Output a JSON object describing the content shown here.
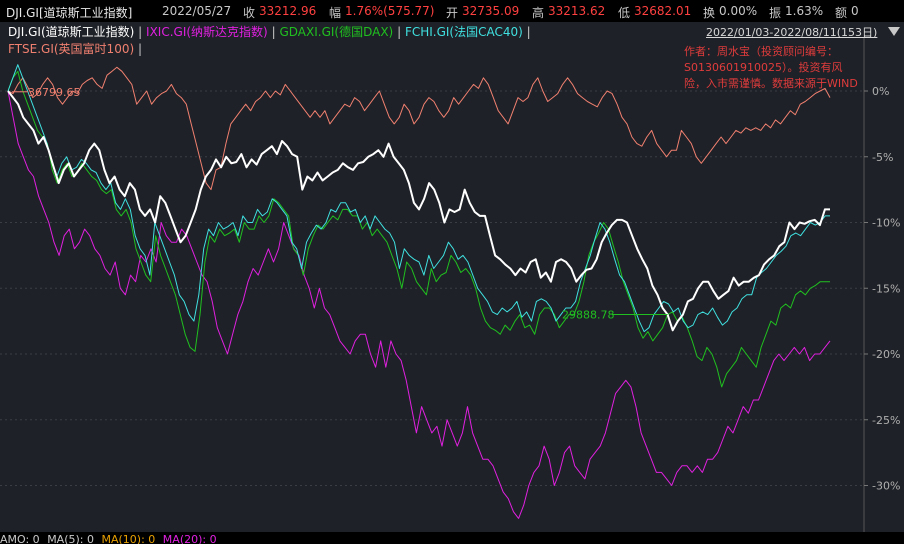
{
  "header": {
    "symbol": "DJI.GI[道琼斯工业指数]",
    "date": "2022/05/27",
    "close_label": "收",
    "close": "33212.96",
    "change_label": "幅",
    "change": "1.76%(575.77)",
    "open_label": "开",
    "open": "32735.09",
    "high_label": "高",
    "high": "33213.62",
    "low_label": "低",
    "low": "32682.01",
    "turnover_label": "换",
    "turnover": "0.00%",
    "amplitude_label": "振",
    "amplitude": "1.63%",
    "amount_label": "额",
    "amount": "0"
  },
  "legend": [
    {
      "label": "DJI.GI(道琼斯工业指数)",
      "color": "#ffffff"
    },
    {
      "label": "IXIC.GI(纳斯达克指数)",
      "color": "#e020e0"
    },
    {
      "label": "GDAXI.GI(德国DAX)",
      "color": "#20c020"
    },
    {
      "label": "FCHI.GI(法国CAC40)",
      "color": "#40e0e0"
    },
    {
      "label": "FTSE.GI(英国富时100)",
      "color": "#f08070"
    }
  ],
  "legend_separator": "|",
  "date_range": "2022/01/03-2022/08/11(153日)",
  "author_note": "作者：周水宝（投资顾问编号：S0130601910025）。投资有风险，入市需谨慎。数据来源于WIND",
  "bottom": {
    "amo": "AMO: 0",
    "ma5": "MA(5): 0",
    "ma10": "MA(10): 0",
    "ma20": "MA(20): 0"
  },
  "colors": {
    "dji": "#ffffff",
    "ixic": "#e020e0",
    "dax": "#20c020",
    "cac": "#40e0e0",
    "ftse": "#f08070",
    "up": "#ff4040",
    "down": "#30d030",
    "ma10": "#e8a000",
    "ma20": "#e020e0"
  },
  "chart_data": {
    "type": "line",
    "title": "",
    "xlabel": "",
    "ylabel": "",
    "x_range": [
      "2022/01/03",
      "2022/08/11"
    ],
    "ylim": [
      -33,
      3
    ],
    "y_ticks": [
      "0%",
      "-5%",
      "-10%",
      "-15%",
      "-20%",
      "-25%",
      "-30%"
    ],
    "y_tick_values": [
      0,
      -5,
      -10,
      -15,
      -20,
      -25,
      -30
    ],
    "annotations": [
      {
        "text": "36799.65",
        "x": 0,
        "y": 0.7,
        "color": "#f08070"
      },
      {
        "text": "29888.78",
        "x": 56,
        "y": -18.3,
        "color": "#20c020"
      }
    ],
    "series": [
      {
        "name": "DJI.GI(道琼斯工业指数)",
        "color": "#ffffff",
        "width": 2,
        "values": [
          0,
          -0.5,
          -1,
          -2,
          -2.5,
          -3,
          -4,
          -3.5,
          -4.5,
          -5.8,
          -7,
          -6,
          -5.5,
          -6.5,
          -6,
          -5.5,
          -4.5,
          -4,
          -4.5,
          -6,
          -7,
          -6.5,
          -7.5,
          -8,
          -7,
          -7.5,
          -9,
          -9.5,
          -9,
          -10,
          -8,
          -8.5,
          -9.5,
          -10.5,
          -11.5,
          -11,
          -10,
          -9,
          -7.5,
          -6.5,
          -6,
          -5.2,
          -5.8,
          -5,
          -5.5,
          -5.4,
          -4.8,
          -5.8,
          -5.2,
          -5.6,
          -4.8,
          -4.5,
          -4.2,
          -4.8,
          -3.8,
          -4.2,
          -4.8,
          -5,
          -7.5,
          -6.5,
          -6.8,
          -6.2,
          -6.8,
          -6.5,
          -6.2,
          -6,
          -5.5,
          -5.8,
          -6,
          -5.5,
          -5.4,
          -5,
          -4.8,
          -4.5,
          -5,
          -4,
          -5,
          -5.5,
          -6,
          -7,
          -8.5,
          -9,
          -8.2,
          -7,
          -7.5,
          -8.5,
          -10,
          -9,
          -9.2,
          -9,
          -7.5,
          -8.5,
          -9.2,
          -9.5,
          -9.5,
          -11,
          -12.5,
          -12.8,
          -13.2,
          -13.5,
          -14,
          -13.5,
          -13.8,
          -13,
          -12.8,
          -14.2,
          -13.8,
          -14.5,
          -13,
          -12.8,
          -13,
          -13.5,
          -14.5,
          -14,
          -13.6,
          -13.5,
          -12.8,
          -11.5,
          -10.8,
          -10.2,
          -9.8,
          -9.8,
          -10,
          -11,
          -12,
          -12.8,
          -13.5,
          -14.8,
          -15.5,
          -16.5,
          -17,
          -18.2,
          -17.5,
          -17,
          -16,
          -15.8,
          -15,
          -14.5,
          -14.5,
          -15.2,
          -15.8,
          -15.5,
          -15.2,
          -14.2,
          -14.8,
          -14.5,
          -14.5,
          -14.2,
          -14,
          -13.2,
          -12.8,
          -12.5,
          -11.8,
          -11.5,
          -10,
          -10.5,
          -10,
          -10.1,
          -9.9,
          -9.8,
          -10.2,
          -9,
          -9
        ]
      },
      {
        "name": "FCHI.GI(法国CAC40)",
        "color": "#40e0e0",
        "width": 1,
        "values": [
          0,
          1,
          2,
          1,
          0,
          -1,
          -2,
          -3,
          -4,
          -5.5,
          -6.5,
          -5.5,
          -5,
          -6,
          -5.8,
          -5.2,
          -5.5,
          -6,
          -6.2,
          -7,
          -7.5,
          -7,
          -8.5,
          -9,
          -8.2,
          -9,
          -11,
          -12,
          -12.5,
          -14,
          -10,
          -11,
          -12,
          -13,
          -14,
          -15.5,
          -16,
          -17,
          -17.5,
          -15.5,
          -12,
          -10.5,
          -11,
          -10,
          -10.5,
          -10.3,
          -10,
          -11,
          -9.5,
          -10,
          -10,
          -9,
          -9.5,
          -9.2,
          -8.2,
          -8.5,
          -9,
          -9.5,
          -11.5,
          -12,
          -13.5,
          -11.5,
          -10.8,
          -10.2,
          -10.5,
          -10,
          -9,
          -9.2,
          -8.5,
          -8.5,
          -9.2,
          -9,
          -10,
          -9.5,
          -10.5,
          -9.5,
          -10,
          -10.5,
          -10.8,
          -11.5,
          -13.5,
          -12,
          -12.5,
          -12.8,
          -13,
          -14,
          -12.5,
          -13.5,
          -13,
          -12.5,
          -11.5,
          -12,
          -12.8,
          -12.5,
          -13,
          -14,
          -15,
          -15.5,
          -16,
          -16.8,
          -17,
          -16.5,
          -16.8,
          -16.5,
          -16,
          -17.2,
          -16.8,
          -17.5,
          -16,
          -15.8,
          -16,
          -16.5,
          -17.5,
          -17,
          -16.5,
          -16.5,
          -16,
          -14.5,
          -13.5,
          -12.5,
          -11.2,
          -10,
          -10.5,
          -11.5,
          -12.8,
          -14,
          -14.5,
          -15.5,
          -16.5,
          -17.5,
          -18.3,
          -18,
          -17,
          -16.5,
          -16,
          -16.2,
          -16.8,
          -16.5,
          -17.5,
          -18,
          -17.8,
          -17,
          -16.8,
          -17,
          -16.5,
          -17.2,
          -17.8,
          -17.5,
          -16.8,
          -16.5,
          -15.8,
          -15.5,
          -15.5,
          -14.2,
          -13.8,
          -13.5,
          -13,
          -12.5,
          -12.2,
          -11.8,
          -11,
          -10.8,
          -11,
          -10.5,
          -10,
          -10.2,
          -10,
          -9.5,
          -9.5
        ]
      },
      {
        "name": "GDAXI.GI(德国DAX)",
        "color": "#20c020",
        "width": 1,
        "values": [
          0,
          1,
          1.5,
          0,
          -1,
          -2,
          -3,
          -3.5,
          -4,
          -6,
          -7,
          -6,
          -5.5,
          -6.5,
          -6.2,
          -5.5,
          -6,
          -6.5,
          -6.8,
          -7.5,
          -7.8,
          -7.5,
          -9,
          -9.5,
          -9,
          -10,
          -12,
          -13,
          -14,
          -14.5,
          -11,
          -12.5,
          -13.5,
          -14.5,
          -15.5,
          -17,
          -18.5,
          -19.5,
          -19.8,
          -17,
          -13,
          -11,
          -11.5,
          -10.5,
          -11,
          -10.8,
          -10.5,
          -11.5,
          -10,
          -10.5,
          -10.5,
          -9.5,
          -10,
          -9.5,
          -8.2,
          -8.5,
          -9,
          -9.5,
          -12,
          -12.5,
          -14,
          -12,
          -11,
          -10.2,
          -10.5,
          -10,
          -9.5,
          -9.8,
          -9,
          -9,
          -9.5,
          -9.5,
          -10.5,
          -10,
          -11,
          -10.5,
          -11,
          -11.5,
          -12.5,
          -13.5,
          -15,
          -13,
          -13.5,
          -14.5,
          -15,
          -15.5,
          -13.5,
          -14.5,
          -14,
          -13.8,
          -12.5,
          -13,
          -13.8,
          -13.5,
          -14,
          -15,
          -16.5,
          -17.5,
          -18,
          -18.2,
          -18.5,
          -17.8,
          -18.2,
          -17.5,
          -17,
          -18,
          -17.8,
          -18.5,
          -17,
          -16.5,
          -16.5,
          -17,
          -18,
          -17.5,
          -17,
          -17,
          -16,
          -14.5,
          -12.5,
          -11.5,
          -10.8,
          -10,
          -10.5,
          -11.8,
          -13,
          -14.5,
          -15.5,
          -16.5,
          -18,
          -18.8,
          -18.3,
          -19,
          -18.5,
          -18,
          -17,
          -16.8,
          -17.5,
          -17.2,
          -18,
          -19,
          -20.2,
          -20.5,
          -19.5,
          -20,
          -21,
          -22.5,
          -21.5,
          -21,
          -20.5,
          -19.5,
          -20,
          -20.5,
          -21,
          -19.5,
          -18.5,
          -17.5,
          -17.8,
          -16.5,
          -16.2,
          -16.5,
          -15.5,
          -15.2,
          -15.5,
          -15,
          -14.8,
          -14.5,
          -14.5,
          -14.5
        ]
      },
      {
        "name": "IXIC.GI(纳斯达克指数)",
        "color": "#e020e0",
        "width": 1,
        "values": [
          0,
          -2,
          -4,
          -5,
          -6,
          -6.5,
          -8,
          -9,
          -10,
          -11.5,
          -12.5,
          -11,
          -10.5,
          -12,
          -11.5,
          -10.5,
          -11,
          -12,
          -12.5,
          -13.5,
          -14,
          -13,
          -15,
          -15.5,
          -14,
          -14.5,
          -12.5,
          -13,
          -12,
          -13,
          -10,
          -11,
          -11.5,
          -11.5,
          -10.5,
          -11,
          -12,
          -13,
          -14,
          -14.5,
          -16,
          -18,
          -19,
          -20,
          -18.5,
          -17,
          -16,
          -14.5,
          -13.5,
          -14,
          -13,
          -12,
          -13,
          -12,
          -10,
          -11,
          -12,
          -12.5,
          -14,
          -15,
          -16.5,
          -15,
          -16.5,
          -17,
          -18,
          -19,
          -19.5,
          -20,
          -19,
          -18.5,
          -18.5,
          -20,
          -21,
          -19,
          -21,
          -19,
          -20,
          -20.5,
          -22,
          -24,
          -26,
          -24,
          -25,
          -26,
          -25.5,
          -27,
          -25,
          -26,
          -27,
          -26,
          -24,
          -26,
          -27,
          -28,
          -28,
          -28.5,
          -29.5,
          -30.5,
          -31,
          -32,
          -32.5,
          -31.5,
          -30,
          -29,
          -28.5,
          -27,
          -28,
          -30,
          -29,
          -27.5,
          -27,
          -28.5,
          -29,
          -29.5,
          -28,
          -27.5,
          -27,
          -26,
          -24.5,
          -23,
          -22.5,
          -22,
          -22.5,
          -24,
          -26,
          -27,
          -28,
          -29,
          -29,
          -29.5,
          -30,
          -29,
          -28.5,
          -28.5,
          -29,
          -28.5,
          -29,
          -28,
          -28,
          -27.5,
          -26.5,
          -25.5,
          -26,
          -25,
          -24,
          -24.5,
          -23.5,
          -23.5,
          -22.5,
          -21.5,
          -20.5,
          -20,
          -20.5,
          -20,
          -19.5,
          -20,
          -19.5,
          -20.5,
          -20,
          -20,
          -19.5,
          -19
        ]
      },
      {
        "name": "FTSE.GI(英国富时100)",
        "color": "#f08070",
        "width": 1,
        "values": [
          0,
          -0.2,
          0.5,
          1,
          0.3,
          -0.5,
          -0.2,
          0.5,
          1,
          0.5,
          -0.5,
          -1,
          -0.5,
          0,
          -0.2,
          0.5,
          0.8,
          1,
          0.5,
          0.2,
          1.2,
          1.5,
          1.8,
          1.5,
          1,
          0.5,
          -1,
          -0.5,
          0,
          -1,
          -0.5,
          -0.2,
          0,
          0.5,
          -0.2,
          -0.5,
          -1,
          -2.5,
          -4,
          -5.5,
          -7,
          -7.5,
          -6,
          -5.8,
          -4,
          -2.5,
          -2,
          -1.5,
          -1,
          -1.5,
          -0.8,
          -0.5,
          0,
          -0.5,
          0,
          -0.3,
          0.5,
          0,
          -0.5,
          -1,
          -1.5,
          -2,
          -1.5,
          -2,
          -1.5,
          -2.5,
          -2,
          -1.5,
          -1,
          -1.2,
          -0.5,
          -0.8,
          -1.5,
          -1,
          -0.5,
          0,
          -1,
          -2,
          -2.5,
          -2,
          -1,
          -1.5,
          -2.5,
          -2,
          -1,
          -0.5,
          -0.8,
          -1.5,
          -2,
          -1.5,
          -0.5,
          -1,
          -0.5,
          0,
          0.5,
          0.2,
          1,
          0.5,
          -0.5,
          -1.5,
          -2,
          -2.5,
          -1.5,
          -0.5,
          -0.8,
          -0.5,
          0.5,
          1,
          0,
          -0.8,
          -0.5,
          -0.2,
          0.5,
          1,
          0.5,
          -0.2,
          -0.5,
          -0.8,
          -1,
          -1.2,
          -0.5,
          0,
          -0.2,
          -1,
          -2,
          -2.5,
          -3.5,
          -4,
          -4.2,
          -3.5,
          -3,
          -4,
          -4.5,
          -5,
          -4.5,
          -4.5,
          -3,
          -3.5,
          -4,
          -5,
          -5.5,
          -5,
          -4.5,
          -4,
          -3.5,
          -4,
          -3.5,
          -3,
          -3.2,
          -2.8,
          -3,
          -2.8,
          -3,
          -2.5,
          -2.8,
          -2.2,
          -2.5,
          -2,
          -1.5,
          -1.8,
          -1,
          -0.8,
          -0.5,
          -0.2,
          0,
          0.2,
          -0.5
        ]
      }
    ]
  }
}
